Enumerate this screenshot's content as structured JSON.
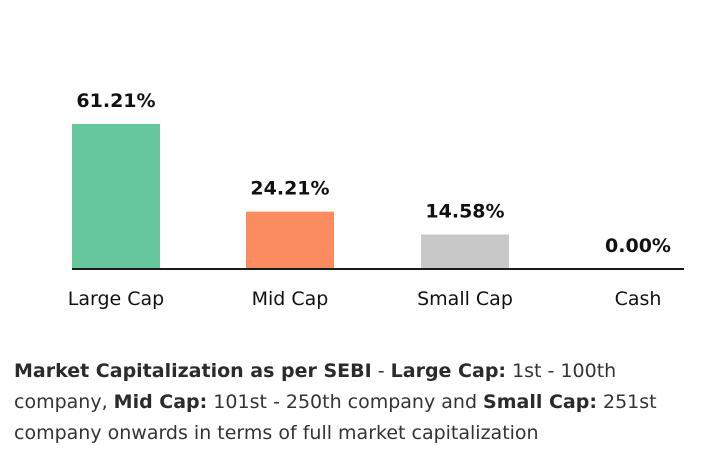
{
  "chart_data": {
    "type": "bar",
    "categories": [
      "Large Cap",
      "Mid Cap",
      "Small Cap",
      "Cash"
    ],
    "values": [
      61.21,
      24.21,
      14.58,
      0.0
    ],
    "data_labels": [
      "61.21%",
      "24.21%",
      "14.58%",
      "0.00%"
    ],
    "colors": [
      "#66c79c",
      "#fb8c5f",
      "#c8c8c8",
      "#c8c8c8"
    ],
    "title": "",
    "xlabel": "",
    "ylabel": "",
    "ylim": [
      0,
      61.21
    ],
    "grid": false,
    "legend": "none"
  },
  "footnote": {
    "bold1": "Market Capitalization as per SEBI",
    "text1": " - ",
    "bold2": "Large Cap:",
    "text2": " 1st - 100th company, ",
    "bold3": "Mid Cap:",
    "text3": " 101st - 250th company and ",
    "bold4": "Small Cap:",
    "text4": " 251st company onwards in terms of full market capitalization"
  }
}
